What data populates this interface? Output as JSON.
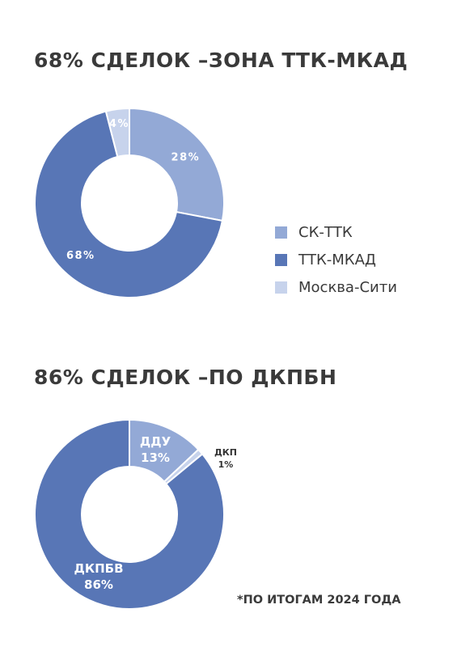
{
  "chart_data": [
    {
      "type": "pie",
      "title": "68% СДЕЛОК –ЗОНА ТТК-МКАД",
      "slices": [
        {
          "name": "СК-ТТК",
          "value": 28,
          "label": "28%",
          "color": "#93a9d6"
        },
        {
          "name": "ТТК-МКАД",
          "value": 68,
          "label": "68%",
          "color": "#5876b6"
        },
        {
          "name": "Москва-Сити",
          "value": 4,
          "label": "4%",
          "color": "#c7d3ec"
        }
      ],
      "legend": "right"
    },
    {
      "type": "pie",
      "title": "86% СДЕЛОК –ПО ДКПБН",
      "slices": [
        {
          "name": "ДДУ",
          "value": 13,
          "label": "ДДУ",
          "percent": "13%",
          "color": "#93a9d6"
        },
        {
          "name": "ДКП",
          "value": 1,
          "label": "ДКП",
          "percent": "1%",
          "color": "#c7d3ec"
        },
        {
          "name": "ДКПБВ",
          "value": 86,
          "label": "ДКПБВ",
          "percent": "86%",
          "color": "#5876b6"
        }
      ]
    }
  ],
  "footnote": "*ПО ИТОГАМ 2024 ГОДА"
}
